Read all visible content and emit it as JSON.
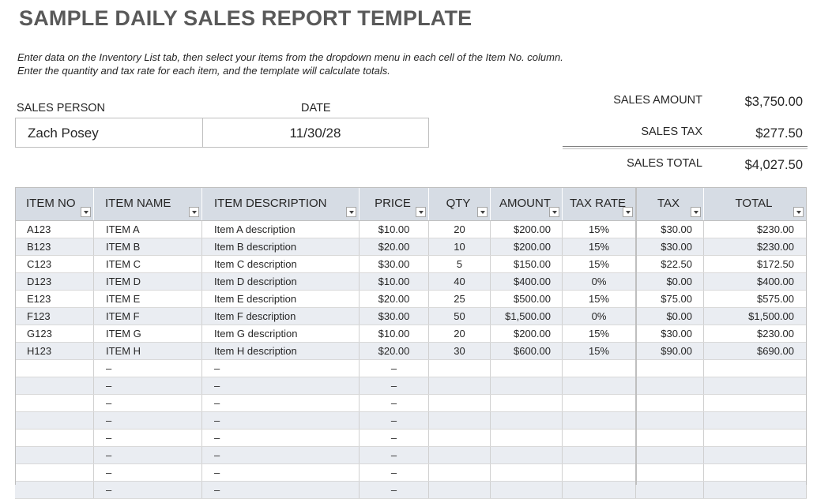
{
  "title": "SAMPLE DAILY SALES REPORT TEMPLATE",
  "instructions": [
    "Enter data on the Inventory List tab, then select your items from the dropdown menu in each cell of the Item No. column.",
    "Enter the quantity and tax rate for each item, and the template will calculate totals."
  ],
  "sales_person": {
    "label": "SALES PERSON",
    "value": "Zach Posey"
  },
  "date": {
    "label": "DATE",
    "value": "11/30/28"
  },
  "summary": {
    "sales_amount_label": "SALES AMOUNT",
    "sales_amount": "$3,750.00",
    "sales_tax_label": "SALES TAX",
    "sales_tax": "$277.50",
    "sales_total_label": "SALES TOTAL",
    "sales_total": "$4,027.50"
  },
  "table": {
    "headers": [
      "ITEM NO",
      "ITEM NAME",
      "ITEM DESCRIPTION",
      "PRICE",
      "QTY",
      "AMOUNT",
      "TAX RATE",
      "TAX",
      "TOTAL"
    ],
    "rows": [
      [
        "A123",
        "ITEM A",
        "Item A description",
        "$10.00",
        "20",
        "$200.00",
        "15%",
        "$30.00",
        "$230.00"
      ],
      [
        "B123",
        "ITEM B",
        "Item B description",
        "$20.00",
        "10",
        "$200.00",
        "15%",
        "$30.00",
        "$230.00"
      ],
      [
        "C123",
        "ITEM C",
        "Item C description",
        "$30.00",
        "5",
        "$150.00",
        "15%",
        "$22.50",
        "$172.50"
      ],
      [
        "D123",
        "ITEM D",
        "Item D description",
        "$10.00",
        "40",
        "$400.00",
        "0%",
        "$0.00",
        "$400.00"
      ],
      [
        "E123",
        "ITEM E",
        "Item E description",
        "$20.00",
        "25",
        "$500.00",
        "15%",
        "$75.00",
        "$575.00"
      ],
      [
        "F123",
        "ITEM F",
        "Item F description",
        "$30.00",
        "50",
        "$1,500.00",
        "0%",
        "$0.00",
        "$1,500.00"
      ],
      [
        "G123",
        "ITEM G",
        "Item G description",
        "$10.00",
        "20",
        "$200.00",
        "15%",
        "$30.00",
        "$230.00"
      ],
      [
        "H123",
        "ITEM H",
        "Item H description",
        "$20.00",
        "30",
        "$600.00",
        "15%",
        "$90.00",
        "$690.00"
      ],
      [
        "",
        "–",
        "–",
        "–",
        "",
        "",
        "",
        "",
        ""
      ],
      [
        "",
        "–",
        "–",
        "–",
        "",
        "",
        "",
        "",
        ""
      ],
      [
        "",
        "–",
        "–",
        "–",
        "",
        "",
        "",
        "",
        ""
      ],
      [
        "",
        "–",
        "–",
        "–",
        "",
        "",
        "",
        "",
        ""
      ],
      [
        "",
        "–",
        "–",
        "–",
        "",
        "",
        "",
        "",
        ""
      ],
      [
        "",
        "–",
        "–",
        "–",
        "",
        "",
        "",
        "",
        ""
      ],
      [
        "",
        "–",
        "–",
        "–",
        "",
        "",
        "",
        "",
        ""
      ],
      [
        "",
        "–",
        "–",
        "–",
        "",
        "",
        "",
        "",
        ""
      ]
    ]
  },
  "colors": {
    "header_bg": "#d6dce4",
    "alt_row_bg": "#eaedf2",
    "title": "#595959"
  }
}
